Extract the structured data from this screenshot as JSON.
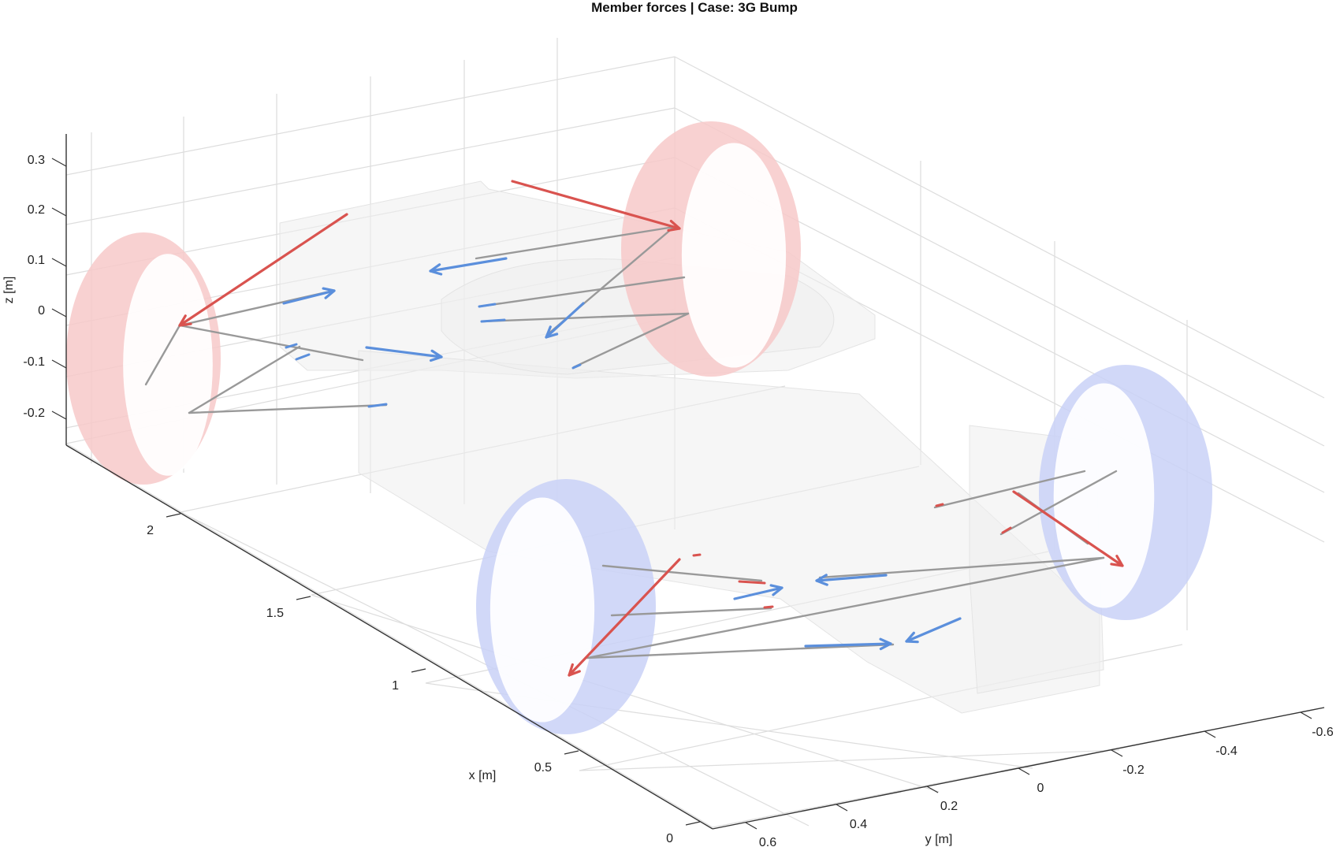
{
  "chart_data": {
    "type": "3d-line",
    "title": "Member forces  |  Case: 3G Bump",
    "xlabel": "x [m]",
    "ylabel": "y [m]",
    "zlabel": "z [m]",
    "xticks": [
      "0",
      "0.5",
      "1",
      "1.5",
      "2"
    ],
    "yticks": [
      "0.6",
      "0.4",
      "0.2",
      "0",
      "-0.2",
      "-0.4",
      "-0.6"
    ],
    "zticks": [
      "0.3",
      "0.2",
      "0.1",
      "0",
      "-0.1",
      "-0.2"
    ],
    "grid": true,
    "colors": {
      "tension": "#d9534f",
      "compression": "#5b8fdc",
      "member": "#999999",
      "front_wheel": "#f7c9c9",
      "rear_wheel": "#c9d1f7",
      "body": "#eeeeee"
    },
    "wheels": [
      {
        "name": "front-left-wheel",
        "color": "front_wheel"
      },
      {
        "name": "front-right-wheel",
        "color": "front_wheel"
      },
      {
        "name": "rear-left-wheel",
        "color": "rear_wheel"
      },
      {
        "name": "rear-right-wheel",
        "color": "rear_wheel"
      }
    ]
  }
}
